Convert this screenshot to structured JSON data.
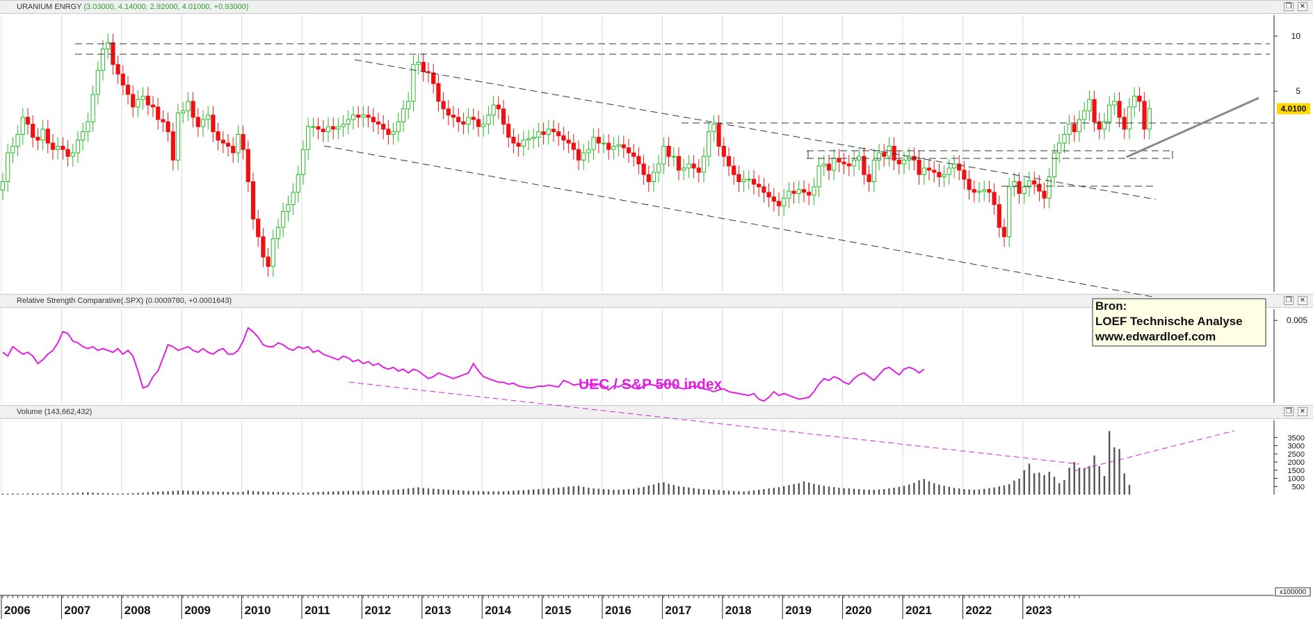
{
  "price_pane": {
    "title": "URANIUM ENRGY",
    "values": "(3.03000, 4.14000, 2.92000, 4.01000, +0.93000)",
    "last_price_label": "4.0100",
    "source_box": [
      "Bron:",
      "LOEF Technische Analyse",
      "www.edwardloef.com"
    ]
  },
  "rs_pane": {
    "title": "Relative Strength Comparative(.SPX)",
    "values": "(0.0009780, +0.0001643)",
    "annotation": "UEC / S&P 500 index"
  },
  "volume_pane": {
    "title": "Volume",
    "values": "(143,662,432)",
    "multiplier": "x100000"
  },
  "window_buttons": {
    "restore": "❐",
    "close": "✕"
  },
  "colors": {
    "up": "#22bb22",
    "down": "#ee1111",
    "rs_line": "#e020e0",
    "volume": "#555555",
    "price_label_bg": "#ffd800"
  },
  "chart_data": [
    {
      "type": "candlestick",
      "title": "URANIUM ENRGY",
      "x_axis": "monthly",
      "x_tick_labels": [
        "2006",
        "2007",
        "2008",
        "2009",
        "2010",
        "2011",
        "2012",
        "2013",
        "2014",
        "2015",
        "2016",
        "2017",
        "2018",
        "2019",
        "2020",
        "2021",
        "2022",
        "2023"
      ],
      "y_scale": "log",
      "y_tick_labels": [
        "10",
        "5"
      ],
      "ylim": [
        0.4,
        13
      ],
      "close": [
        1.6,
        2.3,
        2.5,
        2.9,
        3.6,
        3.3,
        2.8,
        2.7,
        3.1,
        2.6,
        2.4,
        2.5,
        2.4,
        2.2,
        2.3,
        2.7,
        3.0,
        3.4,
        4.8,
        6.5,
        8.5,
        9.2,
        7.0,
        6.2,
        5.4,
        4.8,
        4.1,
        4.5,
        4.7,
        4.2,
        4.1,
        3.5,
        3.4,
        3.0,
        2.1,
        3.8,
        3.9,
        4.4,
        3.6,
        3.2,
        3.5,
        3.7,
        3.0,
        2.7,
        2.6,
        2.5,
        2.3,
        2.9,
        2.4,
        1.6,
        1.0,
        0.8,
        0.62,
        0.55,
        0.78,
        0.9,
        1.1,
        1.2,
        1.4,
        1.75,
        2.4,
        3.2,
        3.2,
        3.1,
        3.0,
        3.2,
        3.1,
        3.2,
        3.3,
        3.5,
        3.7,
        3.6,
        3.7,
        3.6,
        3.4,
        3.3,
        3.1,
        2.9,
        3.0,
        3.4,
        4.0,
        4.4,
        7.0,
        7.2,
        6.4,
        6.3,
        5.5,
        4.4,
        4.0,
        3.7,
        3.6,
        3.4,
        3.3,
        3.6,
        3.5,
        3.2,
        3.3,
        3.7,
        4.2,
        4.0,
        3.3,
        2.8,
        2.6,
        2.5,
        2.7,
        2.75,
        2.8,
        3.0,
        2.9,
        3.1,
        3.0,
        2.85,
        2.7,
        2.6,
        2.4,
        2.1,
        2.3,
        2.4,
        2.8,
        2.6,
        2.6,
        2.4,
        2.5,
        2.55,
        2.45,
        2.3,
        2.2,
        2.0,
        1.75,
        1.6,
        1.8,
        2.0,
        2.5,
        2.2,
        2.2,
        1.85,
        1.9,
        2.0,
        1.9,
        1.8,
        2.2,
        3.0,
        3.3,
        2.5,
        2.2,
        1.95,
        1.75,
        1.6,
        1.65,
        1.65,
        1.55,
        1.5,
        1.4,
        1.32,
        1.25,
        1.18,
        1.3,
        1.42,
        1.38,
        1.45,
        1.4,
        1.35,
        1.5,
        1.95,
        2.0,
        1.85,
        2.15,
        2.05,
        2.0,
        1.95,
        2.1,
        2.2,
        1.75,
        1.6,
        2.1,
        2.3,
        2.2,
        2.5,
        2.1,
        2.0,
        2.1,
        2.2,
        2.1,
        1.75,
        1.9,
        1.85,
        1.8,
        1.7,
        1.75,
        1.9,
        2.0,
        1.85,
        1.65,
        1.45,
        1.4,
        1.42,
        1.45,
        1.4,
        1.2,
        0.9,
        0.8,
        1.5,
        1.6,
        1.38,
        1.5,
        1.62,
        1.55,
        1.42,
        1.3,
        1.7,
        2.3,
        2.6,
        2.9,
        3.3,
        3.0,
        3.5,
        3.9,
        4.5,
        3.4,
        3.1,
        3.4,
        4.2,
        4.4,
        3.6,
        3.1,
        4.1,
        4.7,
        4.4,
        3.1,
        4.01
      ],
      "note": "one close per month, ~Jan 2006 to Apr 2022; open = previous close; up candles green, down candles red"
    },
    {
      "type": "line",
      "title": "Relative Strength Comparative(.SPX)",
      "annotation": "UEC / S&P 500 index",
      "y_tick_labels": [
        "0.005"
      ],
      "ylim": [
        0.0006,
        0.0056
      ],
      "values": [
        0.0033,
        0.0031,
        0.0036,
        0.0034,
        0.0032,
        0.0033,
        0.0031,
        0.0027,
        0.0029,
        0.0032,
        0.0034,
        0.0038,
        0.0044,
        0.0043,
        0.0039,
        0.0038,
        0.0036,
        0.0035,
        0.0036,
        0.0034,
        0.0035,
        0.0034,
        0.0033,
        0.0035,
        0.0032,
        0.0034,
        0.0031,
        0.0023,
        0.0014,
        0.0015,
        0.002,
        0.0023,
        0.003,
        0.0037,
        0.0036,
        0.0034,
        0.0035,
        0.0036,
        0.0034,
        0.0033,
        0.0035,
        0.0033,
        0.0032,
        0.0034,
        0.0035,
        0.0032,
        0.0032,
        0.0034,
        0.0039,
        0.0046,
        0.0044,
        0.0041,
        0.0037,
        0.0036,
        0.0036,
        0.0038,
        0.0037,
        0.0035,
        0.0034,
        0.0036,
        0.0035,
        0.0036,
        0.0033,
        0.0034,
        0.0032,
        0.0031,
        0.003,
        0.0029,
        0.0031,
        0.003,
        0.0028,
        0.0029,
        0.0027,
        0.0028,
        0.0026,
        0.0027,
        0.0025,
        0.0024,
        0.0025,
        0.0023,
        0.0024,
        0.0022,
        0.0024,
        0.0023,
        0.0021,
        0.0019,
        0.002,
        0.0022,
        0.0021,
        0.002,
        0.0019,
        0.002,
        0.0021,
        0.0022,
        0.0027,
        0.0023,
        0.002,
        0.0019,
        0.0018,
        0.0017,
        0.0017,
        0.0016,
        0.00165,
        0.0015,
        0.00145,
        0.0014,
        0.00142,
        0.0015,
        0.00148,
        0.00155,
        0.0015,
        0.00145,
        0.0018,
        0.0017,
        0.00155,
        0.0016,
        0.0017,
        0.0016,
        0.0015,
        0.0016,
        0.0015,
        0.0013,
        0.0015,
        0.00145,
        0.0016,
        0.00155,
        0.0014,
        0.00135,
        0.0015,
        0.0016,
        0.00155,
        0.0015,
        0.0016,
        0.00162,
        0.0016,
        0.00142,
        0.00135,
        0.0014,
        0.0015,
        0.00145,
        0.00135,
        0.0013,
        0.0012,
        0.0013,
        0.00135,
        0.0012,
        0.00115,
        0.0011,
        0.00105,
        0.001,
        0.0011,
        0.0008,
        0.0007,
        0.0009,
        0.0012,
        0.001,
        0.0011,
        0.001,
        0.0009,
        0.0008,
        0.00085,
        0.0009,
        0.0012,
        0.0016,
        0.0019,
        0.0018,
        0.002,
        0.0019,
        0.0017,
        0.0016,
        0.0019,
        0.0021,
        0.0022,
        0.002,
        0.0018,
        0.0021,
        0.0024,
        0.0025,
        0.0023,
        0.0021,
        0.0024,
        0.0025,
        0.0024,
        0.0022,
        0.0024
      ]
    },
    {
      "type": "bar",
      "title": "Volume",
      "y_unit": "x100000",
      "y_tick_labels": [
        "3500",
        "3000",
        "2500",
        "2000",
        "1500",
        "1000",
        "500"
      ],
      "ylim": [
        0,
        4300
      ],
      "values": [
        60,
        55,
        70,
        65,
        60,
        75,
        80,
        70,
        65,
        85,
        90,
        75,
        70,
        80,
        95,
        110,
        130,
        150,
        120,
        100,
        90,
        85,
        80,
        75,
        70,
        85,
        90,
        100,
        120,
        150,
        170,
        190,
        200,
        210,
        230,
        250,
        260,
        240,
        230,
        220,
        210,
        200,
        190,
        180,
        175,
        170,
        165,
        160,
        180,
        260,
        220,
        200,
        190,
        180,
        170,
        160,
        150,
        140,
        130,
        120,
        110,
        130,
        150,
        170,
        180,
        190,
        200,
        210,
        220,
        230,
        240,
        220,
        230,
        240,
        250,
        260,
        270,
        280,
        300,
        320,
        350,
        380,
        420,
        450,
        400,
        380,
        360,
        340,
        320,
        300,
        280,
        260,
        250,
        240,
        230,
        220,
        210,
        200,
        200,
        200,
        200,
        220,
        240,
        260,
        280,
        300,
        320,
        340,
        360,
        380,
        400,
        420,
        460,
        500,
        520,
        540,
        480,
        420,
        380,
        360,
        340,
        320,
        300,
        300,
        320,
        340,
        360,
        420,
        480,
        560,
        620,
        720,
        760,
        660,
        600,
        520,
        480,
        440,
        400,
        360,
        340,
        320,
        300,
        280,
        260,
        240,
        220,
        210,
        200,
        220,
        260,
        300,
        340,
        380,
        420,
        460,
        520,
        580,
        640,
        700,
        820,
        740,
        660,
        600,
        540,
        500,
        460,
        420,
        400,
        380,
        360,
        340,
        320,
        300,
        300,
        320,
        340,
        380,
        420,
        480,
        540,
        620,
        720,
        880,
        960,
        820,
        700,
        620,
        540,
        480,
        420,
        380,
        340,
        320,
        300,
        320,
        360,
        400,
        440,
        500,
        560,
        640,
        860,
        980,
        1500,
        1900,
        1300,
        1350,
        1200,
        1400,
        1100,
        700,
        900,
        1650,
        2000,
        1650,
        1600,
        1750,
        2400,
        1750,
        1150,
        3900,
        2900,
        2800,
        1300,
        600
      ]
    }
  ]
}
